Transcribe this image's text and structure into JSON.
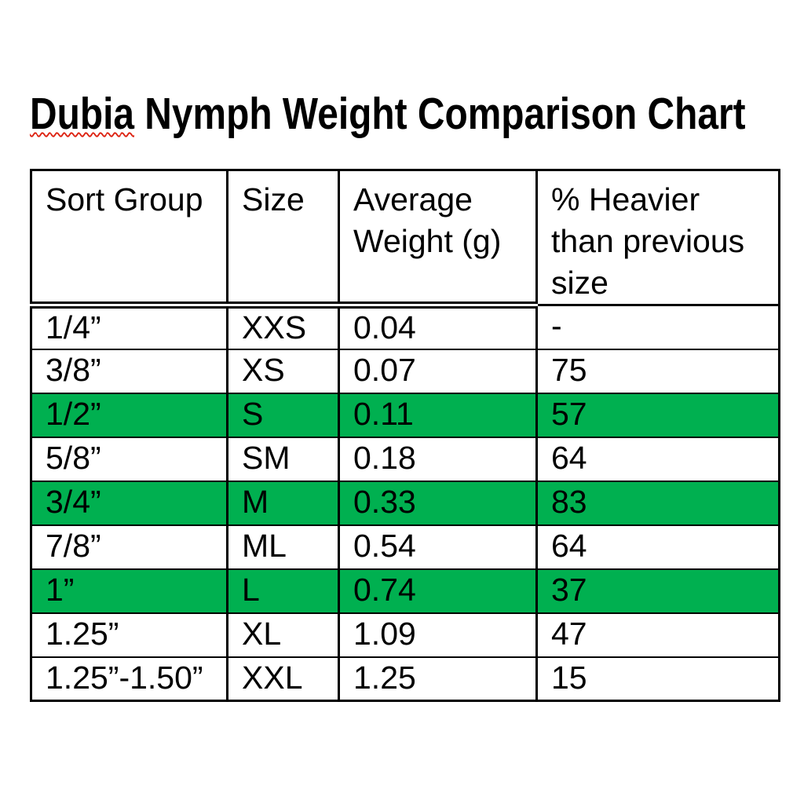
{
  "title": {
    "full": "Dubia Nymph Weight Comparison Chart",
    "misspelled_word": "Dubia",
    "rest": " Nymph Weight Comparison Chart"
  },
  "table": {
    "headers": [
      {
        "label": "Sort Group"
      },
      {
        "label": "Size"
      },
      {
        "label": "Average\nWeight (g)"
      },
      {
        "label": "% Heavier\nthan previous\nsize"
      }
    ],
    "rows": [
      {
        "sort_group": "1/4”",
        "size": "XXS",
        "avg_weight_g": "0.04",
        "pct_heavier": "-",
        "highlighted": false
      },
      {
        "sort_group": "3/8”",
        "size": "XS",
        "avg_weight_g": "0.07",
        "pct_heavier": "75",
        "highlighted": false
      },
      {
        "sort_group": "1/2”",
        "size": "S",
        "avg_weight_g": "0.11",
        "pct_heavier": "57",
        "highlighted": true
      },
      {
        "sort_group": "5/8”",
        "size": "SM",
        "avg_weight_g": "0.18",
        "pct_heavier": "64",
        "highlighted": false
      },
      {
        "sort_group": "3/4”",
        "size": "M",
        "avg_weight_g": "0.33",
        "pct_heavier": "83",
        "highlighted": true
      },
      {
        "sort_group": "7/8”",
        "size": "ML",
        "avg_weight_g": "0.54",
        "pct_heavier": "64",
        "highlighted": false
      },
      {
        "sort_group": "1”",
        "size": "L",
        "avg_weight_g": "0.74",
        "pct_heavier": "37",
        "highlighted": true
      },
      {
        "sort_group": "1.25”",
        "size": "XL",
        "avg_weight_g": "1.09",
        "pct_heavier": "47",
        "highlighted": false
      },
      {
        "sort_group": "1.25”-1.50”",
        "size": "XXL",
        "avg_weight_g": "1.25",
        "pct_heavier": "15",
        "highlighted": false
      }
    ]
  },
  "colors": {
    "highlight_green": "#00B050",
    "spellcheck_red": "#DD2211",
    "border": "#000000",
    "text": "#000000",
    "background": "#FFFFFF"
  },
  "chart_data": {
    "type": "table",
    "title": "Dubia Nymph Weight Comparison Chart",
    "columns": [
      "Sort Group",
      "Size",
      "Average Weight (g)",
      "% Heavier than previous size"
    ],
    "rows": [
      [
        "1/4”",
        "XXS",
        0.04,
        null
      ],
      [
        "3/8”",
        "XS",
        0.07,
        75
      ],
      [
        "1/2”",
        "S",
        0.11,
        57
      ],
      [
        "5/8”",
        "SM",
        0.18,
        64
      ],
      [
        "3/4”",
        "M",
        0.33,
        83
      ],
      [
        "7/8”",
        "ML",
        0.54,
        64
      ],
      [
        "1”",
        "L",
        0.74,
        37
      ],
      [
        "1.25”",
        "XL",
        1.09,
        47
      ],
      [
        "1.25”-1.50”",
        "XXL",
        1.25,
        15
      ]
    ],
    "highlighted_row_indices": [
      2,
      4,
      6
    ],
    "legend_position": "none",
    "grid": true
  }
}
